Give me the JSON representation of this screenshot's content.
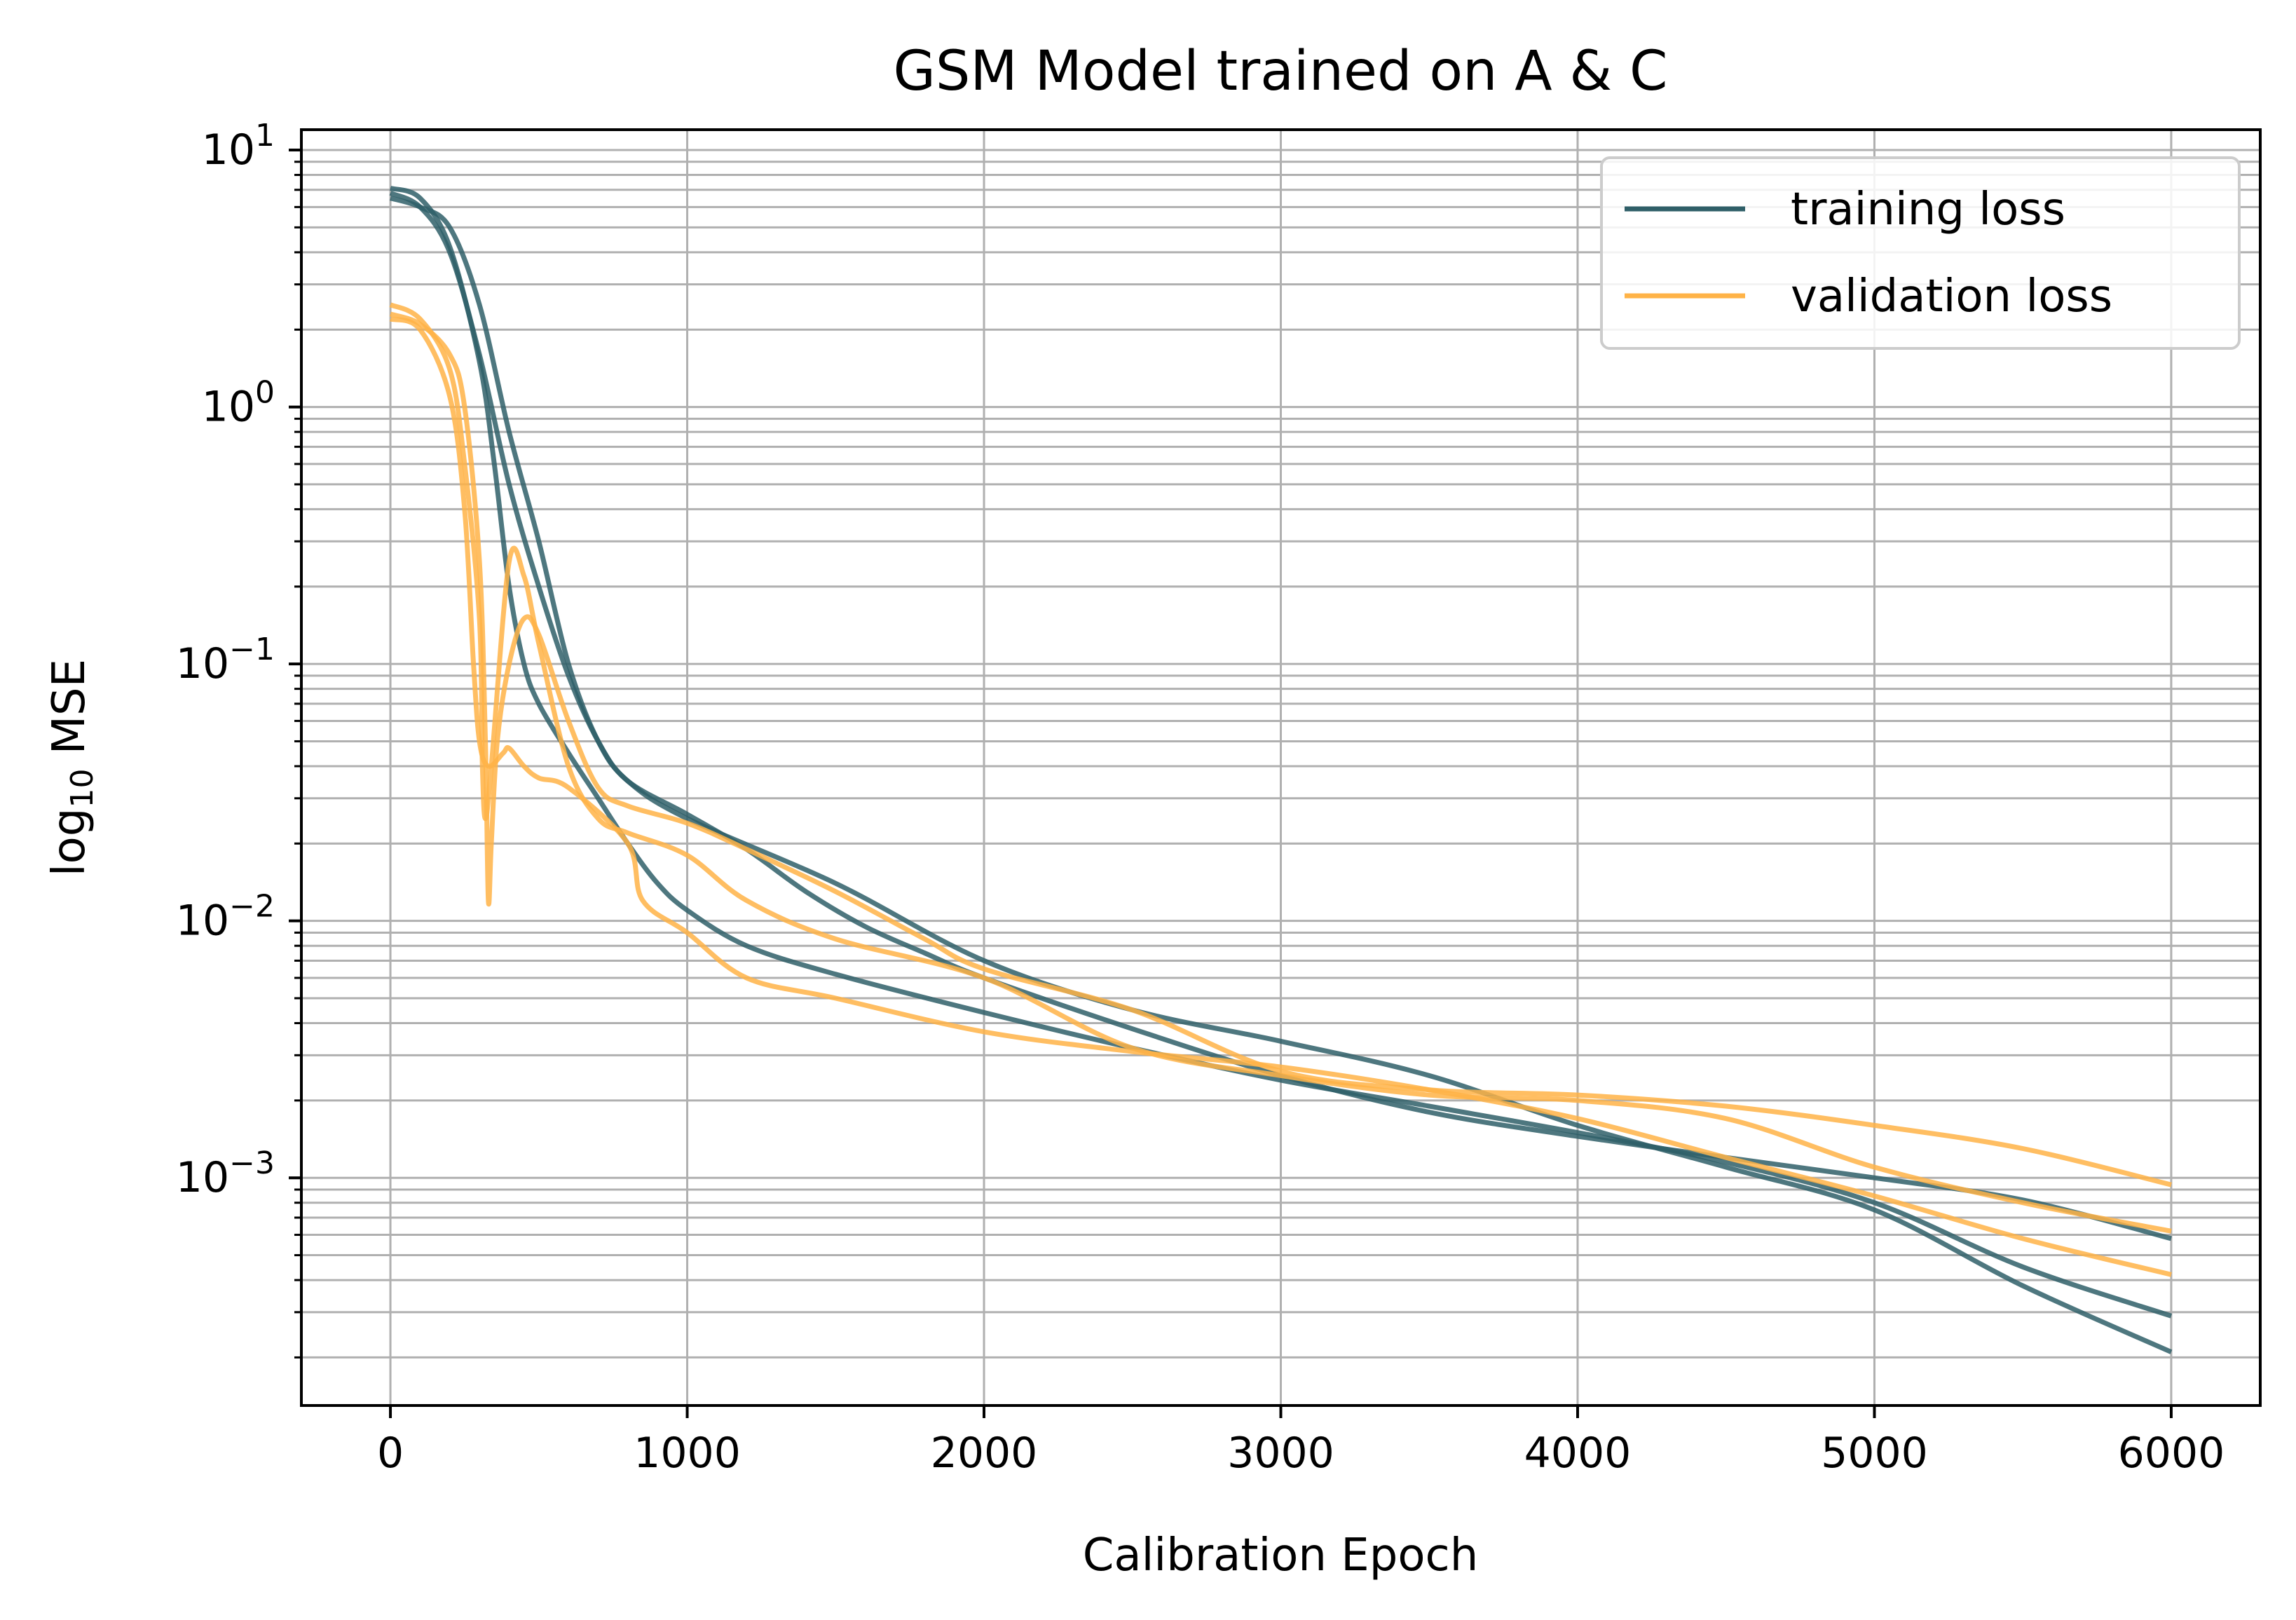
{
  "chart_data": {
    "type": "line",
    "title": "GSM Model trained on A & C",
    "xlabel": "Calibration Epoch",
    "ylabel": {
      "prefix": "log",
      "subscript": "10",
      "suffix": " MSE"
    },
    "xlim": [
      -300,
      6300
    ],
    "ylim": [
      0.00013,
      12
    ],
    "yscale": "log",
    "grid": true,
    "x_ticks": [
      {
        "value": 0,
        "label": "0"
      },
      {
        "value": 1000,
        "label": "1000"
      },
      {
        "value": 2000,
        "label": "2000"
      },
      {
        "value": 3000,
        "label": "3000"
      },
      {
        "value": 4000,
        "label": "4000"
      },
      {
        "value": 5000,
        "label": "5000"
      },
      {
        "value": 6000,
        "label": "6000"
      }
    ],
    "y_ticks": [
      {
        "value": 10,
        "base": "10",
        "exponent": "1"
      },
      {
        "value": 1,
        "base": "10",
        "exponent": "0"
      },
      {
        "value": 0.1,
        "base": "10",
        "exponent": "−1"
      },
      {
        "value": 0.01,
        "base": "10",
        "exponent": "−2"
      },
      {
        "value": 0.001,
        "base": "10",
        "exponent": "−3"
      }
    ],
    "legend": {
      "position": "top-right",
      "entries": [
        {
          "label": "training loss",
          "color": "#2f5f68"
        },
        {
          "label": "validation loss",
          "color": "#ffb347"
        }
      ]
    },
    "colors": {
      "training": "#2f5f68",
      "validation": "#ffb347",
      "grid": "#b0b0b0"
    },
    "series": [
      {
        "name": "training loss",
        "kind": "training",
        "points": [
          [
            0,
            6.8
          ],
          [
            100,
            6.0
          ],
          [
            200,
            4.0
          ],
          [
            300,
            1.6
          ],
          [
            400,
            0.5
          ],
          [
            500,
            0.2
          ],
          [
            600,
            0.09
          ],
          [
            700,
            0.05
          ],
          [
            800,
            0.035
          ],
          [
            1000,
            0.026
          ],
          [
            1200,
            0.019
          ],
          [
            1400,
            0.013
          ],
          [
            1600,
            0.0095
          ],
          [
            1800,
            0.0075
          ],
          [
            2000,
            0.006
          ],
          [
            2500,
            0.0038
          ],
          [
            3000,
            0.0025
          ],
          [
            3500,
            0.0018
          ],
          [
            4000,
            0.00145
          ],
          [
            4500,
            0.0012
          ],
          [
            5000,
            0.001
          ],
          [
            5500,
            0.00082
          ],
          [
            6000,
            0.00058
          ]
        ]
      },
      {
        "name": "training loss",
        "kind": "training",
        "points": [
          [
            0,
            7.1
          ],
          [
            100,
            6.5
          ],
          [
            200,
            4.2
          ],
          [
            300,
            1.5
          ],
          [
            350,
            0.6
          ],
          [
            400,
            0.2
          ],
          [
            450,
            0.1
          ],
          [
            500,
            0.07
          ],
          [
            600,
            0.045
          ],
          [
            700,
            0.03
          ],
          [
            800,
            0.02
          ],
          [
            900,
            0.014
          ],
          [
            1000,
            0.011
          ],
          [
            1200,
            0.008
          ],
          [
            1500,
            0.0062
          ],
          [
            2000,
            0.0044
          ],
          [
            2500,
            0.0032
          ],
          [
            3000,
            0.0024
          ],
          [
            3500,
            0.0019
          ],
          [
            4000,
            0.0015
          ],
          [
            4500,
            0.00115
          ],
          [
            5000,
            0.0008
          ],
          [
            5500,
            0.00045
          ],
          [
            6000,
            0.00029
          ]
        ]
      },
      {
        "name": "training loss",
        "kind": "training",
        "points": [
          [
            0,
            6.5
          ],
          [
            100,
            6.0
          ],
          [
            200,
            5.0
          ],
          [
            300,
            2.5
          ],
          [
            400,
            0.8
          ],
          [
            500,
            0.3
          ],
          [
            600,
            0.1
          ],
          [
            700,
            0.05
          ],
          [
            800,
            0.035
          ],
          [
            1000,
            0.025
          ],
          [
            1500,
            0.014
          ],
          [
            2000,
            0.007
          ],
          [
            2500,
            0.0045
          ],
          [
            3000,
            0.0034
          ],
          [
            3500,
            0.0025
          ],
          [
            4000,
            0.0016
          ],
          [
            4500,
            0.0011
          ],
          [
            5000,
            0.00075
          ],
          [
            5500,
            0.00038
          ],
          [
            6000,
            0.00021
          ]
        ]
      },
      {
        "name": "validation loss",
        "kind": "validation",
        "points": [
          [
            0,
            2.3
          ],
          [
            100,
            2.1
          ],
          [
            200,
            1.6
          ],
          [
            250,
            1.0
          ],
          [
            300,
            0.25
          ],
          [
            320,
            0.05
          ],
          [
            330,
            0.012
          ],
          [
            340,
            0.02
          ],
          [
            360,
            0.05
          ],
          [
            400,
            0.1
          ],
          [
            450,
            0.15
          ],
          [
            500,
            0.13
          ],
          [
            600,
            0.06
          ],
          [
            700,
            0.033
          ],
          [
            800,
            0.028
          ],
          [
            1000,
            0.024
          ],
          [
            1200,
            0.019
          ],
          [
            1500,
            0.013
          ],
          [
            1800,
            0.0085
          ],
          [
            2000,
            0.0065
          ],
          [
            2500,
            0.0045
          ],
          [
            3000,
            0.0026
          ],
          [
            3500,
            0.0022
          ],
          [
            4000,
            0.0021
          ],
          [
            4500,
            0.0019
          ],
          [
            5000,
            0.0016
          ],
          [
            5500,
            0.0013
          ],
          [
            6000,
            0.00094
          ]
        ]
      },
      {
        "name": "validation loss",
        "kind": "validation",
        "points": [
          [
            0,
            2.5
          ],
          [
            100,
            2.2
          ],
          [
            200,
            1.4
          ],
          [
            250,
            0.6
          ],
          [
            300,
            0.15
          ],
          [
            310,
            0.04
          ],
          [
            320,
            0.025
          ],
          [
            340,
            0.04
          ],
          [
            400,
            0.25
          ],
          [
            450,
            0.22
          ],
          [
            500,
            0.12
          ],
          [
            600,
            0.04
          ],
          [
            700,
            0.025
          ],
          [
            800,
            0.022
          ],
          [
            1000,
            0.018
          ],
          [
            1200,
            0.012
          ],
          [
            1500,
            0.0085
          ],
          [
            2000,
            0.006
          ],
          [
            2500,
            0.0032
          ],
          [
            3000,
            0.0025
          ],
          [
            3500,
            0.0021
          ],
          [
            4000,
            0.002
          ],
          [
            4500,
            0.0017
          ],
          [
            5000,
            0.0011
          ],
          [
            5500,
            0.0008
          ],
          [
            6000,
            0.00062
          ]
        ]
      },
      {
        "name": "validation loss",
        "kind": "validation",
        "points": [
          [
            0,
            2.2
          ],
          [
            100,
            2.0
          ],
          [
            200,
            1.1
          ],
          [
            250,
            0.4
          ],
          [
            280,
            0.1
          ],
          [
            300,
            0.05
          ],
          [
            330,
            0.04
          ],
          [
            380,
            0.045
          ],
          [
            400,
            0.047
          ],
          [
            450,
            0.04
          ],
          [
            500,
            0.036
          ],
          [
            600,
            0.033
          ],
          [
            800,
            0.02
          ],
          [
            850,
            0.012
          ],
          [
            1000,
            0.009
          ],
          [
            1200,
            0.006
          ],
          [
            1500,
            0.005
          ],
          [
            2000,
            0.0037
          ],
          [
            2500,
            0.0031
          ],
          [
            3000,
            0.0027
          ],
          [
            3500,
            0.0022
          ],
          [
            4000,
            0.0017
          ],
          [
            4500,
            0.0012
          ],
          [
            5000,
            0.00085
          ],
          [
            5500,
            0.00058
          ],
          [
            6000,
            0.00042
          ]
        ]
      }
    ]
  }
}
